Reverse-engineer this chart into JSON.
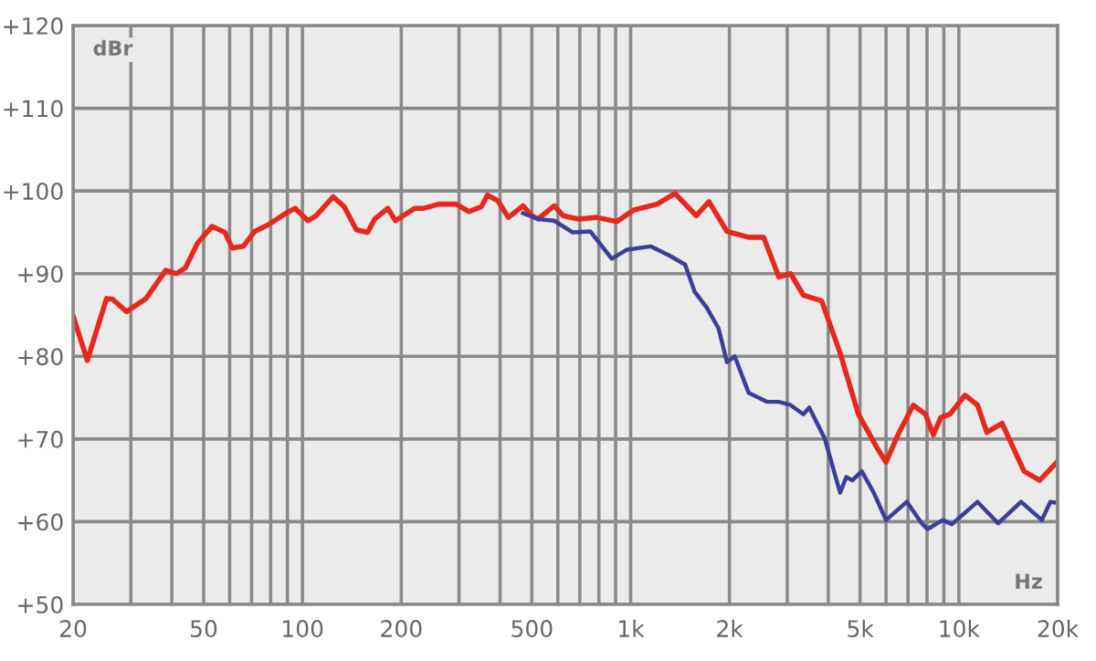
{
  "chart_data": {
    "type": "line",
    "xlabel": "Hz",
    "ylabel": "dBr",
    "log": "x",
    "grid": true,
    "line_style": "solid",
    "marker": "none",
    "xlim": [
      20,
      20000
    ],
    "ylim": [
      50,
      120
    ],
    "xticks": [
      20,
      {
        "value": 30,
        "label": null
      },
      {
        "value": 40,
        "label": null
      },
      50,
      {
        "value": 60,
        "label": null
      },
      {
        "value": 70,
        "label": null
      },
      {
        "value": 80,
        "label": null
      },
      {
        "value": 90,
        "label": null
      },
      100,
      200,
      {
        "value": 300,
        "label": null
      },
      {
        "value": 400,
        "label": null
      },
      500,
      {
        "value": 600,
        "label": null
      },
      {
        "value": 700,
        "label": null
      },
      {
        "value": 800,
        "label": null
      },
      {
        "value": 900,
        "label": null
      },
      {
        "value": 1000,
        "label": "1k"
      },
      {
        "value": 2000,
        "label": "2k"
      },
      {
        "value": 3000,
        "label": null
      },
      {
        "value": 4000,
        "label": null
      },
      {
        "value": 5000,
        "label": "5k"
      },
      {
        "value": 6000,
        "label": null
      },
      {
        "value": 7000,
        "label": null
      },
      {
        "value": 8000,
        "label": null
      },
      {
        "value": 9000,
        "label": null
      },
      {
        "value": 10000,
        "label": "10k"
      },
      {
        "value": 20000,
        "label": "20k"
      }
    ],
    "yticks": [
      {
        "value": 50,
        "label": "+50"
      },
      {
        "value": 60,
        "label": "+60"
      },
      {
        "value": 70,
        "label": "+70"
      },
      {
        "value": 80,
        "label": "+80"
      },
      {
        "value": 90,
        "label": "+90"
      },
      {
        "value": 100,
        "label": "+100"
      },
      {
        "value": 110,
        "label": "+110"
      },
      {
        "value": 120,
        "label": "+120"
      }
    ],
    "series": [
      {
        "color": "#e8281c",
        "x": [
          20,
          22.1,
          25.3,
          26.4,
          29.1,
          33.4,
          38.3,
          41.3,
          44,
          47.9,
          53,
          58,
          61.1,
          66,
          71.5,
          78.6,
          89,
          95,
          103.9,
          110,
          124,
          134,
          146,
          158,
          166,
          182,
          192,
          220,
          234,
          260,
          294,
          322,
          351,
          366,
          394,
          424,
          470,
          501,
          522,
          585,
          623,
          694,
          788,
          908,
          1022,
          1204,
          1365,
          1584,
          1732,
          1965,
          2288,
          2543,
          2827,
          3072,
          3359,
          3820,
          4347,
          4941,
          5620,
          5998,
          6522,
          7267,
          7911,
          8360,
          8808,
          9390,
          10450,
          11400,
          12170,
          13540,
          15800,
          17630,
          19900
        ],
        "values": [
          84.9,
          79.5,
          87.0,
          86.9,
          85.4,
          87.0,
          90.4,
          90.0,
          90.7,
          93.7,
          95.7,
          95.0,
          93.1,
          93.3,
          95.1,
          95.9,
          97.3,
          97.9,
          96.4,
          97.0,
          99.3,
          98.1,
          95.3,
          95.0,
          96.6,
          97.9,
          96.4,
          97.9,
          97.9,
          98.4,
          98.4,
          97.5,
          98.1,
          99.5,
          98.8,
          96.8,
          98.2,
          97.0,
          96.6,
          98.2,
          97.0,
          96.6,
          96.8,
          96.3,
          97.7,
          98.4,
          99.7,
          97.0,
          98.7,
          95.1,
          94.4,
          94.4,
          89.6,
          90.0,
          87.4,
          86.7,
          80.4,
          73.0,
          69.0,
          67.2,
          70.5,
          74.1,
          73.0,
          70.5,
          72.6,
          73.0,
          75.3,
          74.1,
          70.8,
          71.9,
          66.1,
          65.0,
          67.2
        ]
      },
      {
        "color": "#3a3f9a",
        "x": [
          470,
          522,
          585,
          665,
          754,
          876,
          975,
          1150,
          1310,
          1465,
          1567,
          1705,
          1852,
          1965,
          2075,
          2288,
          2600,
          2827,
          3072,
          3359,
          3502,
          3900,
          4347,
          4540,
          4738,
          5060,
          5507,
          5998,
          6945,
          7706,
          8028,
          8930,
          9530,
          11400,
          13180,
          15470,
          17900,
          19000,
          19900
        ],
        "values": [
          97.3,
          96.6,
          96.4,
          95.0,
          95.1,
          91.8,
          92.9,
          93.3,
          92.2,
          91.1,
          87.8,
          85.9,
          83.4,
          79.3,
          80.0,
          75.6,
          74.5,
          74.5,
          74.1,
          73.0,
          73.8,
          70.1,
          63.5,
          65.4,
          65.0,
          66.1,
          63.5,
          60.2,
          62.4,
          59.8,
          59.1,
          60.2,
          59.7,
          62.4,
          59.8,
          62.4,
          60.2,
          62.4,
          62.3
        ]
      }
    ]
  }
}
